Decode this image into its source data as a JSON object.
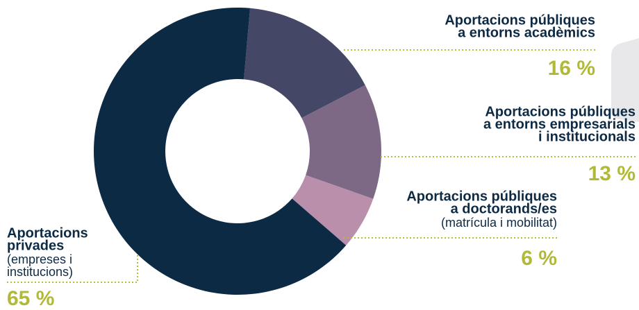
{
  "chart_data": {
    "type": "donut",
    "categories": [
      {
        "lines": [
          "Aportacions públiques",
          "a entorns acadèmics"
        ]
      },
      {
        "lines": [
          "Aportacions públiques",
          "a entorns empresarials",
          "i institucionals"
        ]
      },
      {
        "lines": [
          "Aportacions públiques",
          "a doctorands/es"
        ],
        "detail": [
          "(matrícula i mobilitat)"
        ]
      },
      {
        "lines": [
          "Aportacions",
          "privades"
        ],
        "detail": [
          "(empreses i",
          "institucions)"
        ]
      }
    ],
    "values": [
      16,
      13,
      6,
      65
    ],
    "value_labels": [
      "16 %",
      "13 %",
      "6 %",
      "65 %"
    ],
    "colors": [
      "#454766",
      "#7d6886",
      "#b98fab",
      "#0d2a45"
    ]
  }
}
